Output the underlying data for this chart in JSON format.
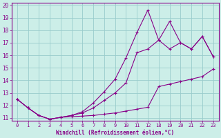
{
  "xlabel": "Windchill (Refroidissement éolien,°C)",
  "bg_color": "#cceee8",
  "line_color": "#880088",
  "grid_color": "#99cccc",
  "ylim": [
    11,
    20
  ],
  "xlim": [
    -0.5,
    18.5
  ],
  "yticks_vals": [
    11,
    12,
    13,
    14,
    15,
    16,
    17,
    18,
    19,
    20
  ],
  "xtick_positions": [
    0,
    1,
    2,
    3,
    4,
    5,
    6,
    7,
    8,
    9,
    10,
    11,
    12,
    13,
    14,
    15,
    16,
    17,
    18
  ],
  "xtick_labels": [
    "0",
    "1",
    "2",
    "3",
    "4",
    "5",
    "6",
    "7",
    "8",
    "9",
    "10",
    "11",
    "12",
    "18",
    "19",
    "20",
    "21",
    "22",
    "23"
  ],
  "line1_x": [
    0,
    1,
    2,
    3,
    4,
    5,
    6,
    7,
    8,
    9,
    10,
    11,
    12,
    13,
    14,
    15,
    16,
    17,
    18
  ],
  "line1_y": [
    12.5,
    11.8,
    11.2,
    10.9,
    11.05,
    11.1,
    11.15,
    11.2,
    11.3,
    11.4,
    11.55,
    11.7,
    11.85,
    13.5,
    13.7,
    13.9,
    14.1,
    14.3,
    14.9
  ],
  "line2_x": [
    0,
    1,
    2,
    3,
    4,
    5,
    6,
    7,
    8,
    9,
    10,
    11,
    12,
    13,
    14,
    15,
    16,
    17,
    18
  ],
  "line2_y": [
    12.5,
    11.8,
    11.2,
    10.9,
    11.05,
    11.2,
    11.4,
    11.8,
    12.4,
    13.0,
    13.8,
    16.2,
    16.5,
    17.2,
    16.5,
    17.0,
    16.5,
    17.5,
    15.9
  ],
  "line3_x": [
    0,
    1,
    2,
    3,
    4,
    5,
    6,
    7,
    8,
    9,
    10,
    11,
    12,
    13,
    14,
    15,
    16,
    17,
    18
  ],
  "line3_y": [
    12.5,
    11.8,
    11.2,
    10.9,
    11.05,
    11.2,
    11.5,
    12.2,
    13.1,
    14.1,
    15.8,
    17.8,
    19.6,
    17.2,
    18.7,
    17.0,
    16.5,
    17.5,
    15.9
  ],
  "marker": "+"
}
